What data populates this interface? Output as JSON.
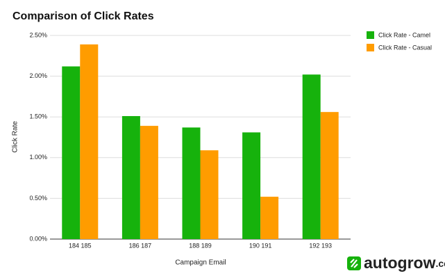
{
  "chart_data": {
    "type": "bar",
    "title": "Comparison of Click Rates",
    "x_label": "Campaign Email",
    "y_label": "Click Rate",
    "categories": [
      "184 185",
      "186 187",
      "188 189",
      "190 191",
      "192 193"
    ],
    "series": [
      {
        "name": "Click Rate - Camel",
        "color": "#16b20c",
        "values": [
          2.12,
          1.51,
          1.37,
          1.31,
          2.02
        ]
      },
      {
        "name": "Click Rate - Casual",
        "color": "#ff9c00",
        "values": [
          2.39,
          1.39,
          1.09,
          0.52,
          1.56
        ]
      }
    ],
    "ylim": [
      0,
      2.5
    ],
    "yticks": [
      {
        "value": 0,
        "label": "0.00%"
      },
      {
        "value": 0.5,
        "label": "0.50%"
      },
      {
        "value": 1,
        "label": "1.00%"
      },
      {
        "value": 1.5,
        "label": "1.50%"
      },
      {
        "value": 2,
        "label": "2.00%"
      },
      {
        "value": 2.5,
        "label": "2.50%"
      }
    ],
    "grid": true,
    "legend": "right"
  },
  "brand": {
    "name": "autogrow",
    "suffix": ".co"
  }
}
